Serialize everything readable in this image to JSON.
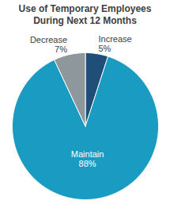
{
  "chart_data": {
    "type": "pie",
    "title": "Use of Temporary Employees During Next 12 Months",
    "categories": [
      "Increase",
      "Maintain",
      "Decrease"
    ],
    "values": [
      5,
      88,
      7
    ],
    "value_labels": [
      "5%",
      "88%",
      "7%"
    ],
    "colors": [
      "#1f4e79",
      "#1a9bc1",
      "#8e979c"
    ],
    "data_labels": true
  }
}
